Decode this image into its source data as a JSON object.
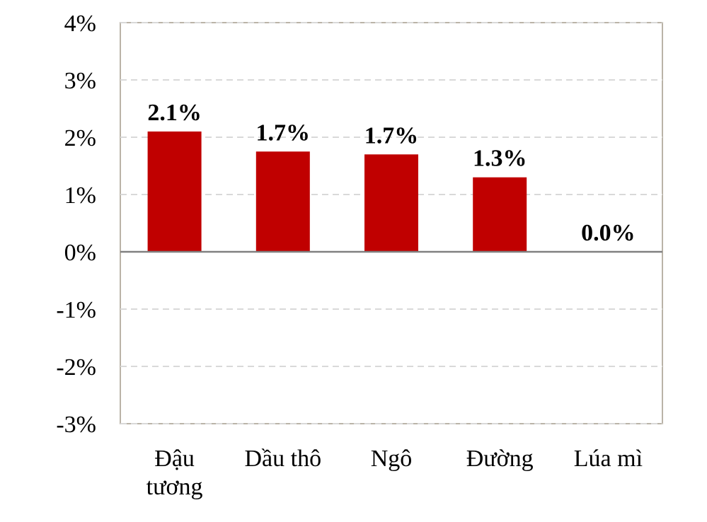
{
  "chart_data": {
    "type": "bar",
    "categories": [
      [
        "Đậu",
        "tương"
      ],
      [
        "Dầu thô"
      ],
      [
        "Ngô"
      ],
      [
        "Đường"
      ],
      [
        "Lúa mì"
      ]
    ],
    "values": [
      2.1,
      1.75,
      1.7,
      1.3,
      0.0
    ],
    "data_labels": [
      "2.1%",
      "1.7%",
      "1.7%",
      "1.3%",
      "0.0%"
    ],
    "ylim": [
      -3,
      4
    ],
    "yticks": [
      4,
      3,
      2,
      1,
      0,
      -1,
      -2,
      -3
    ],
    "ytick_labels": [
      "4%",
      "3%",
      "2%",
      "1%",
      "0%",
      "-1%",
      "-2%",
      "-3%"
    ],
    "grid": true,
    "bar_color": "#c00000",
    "grid_color": "#d9d9d9",
    "zero_line_color": "#808080",
    "frame_color": "#a39a8a",
    "title": "",
    "xlabel": "",
    "ylabel": ""
  }
}
